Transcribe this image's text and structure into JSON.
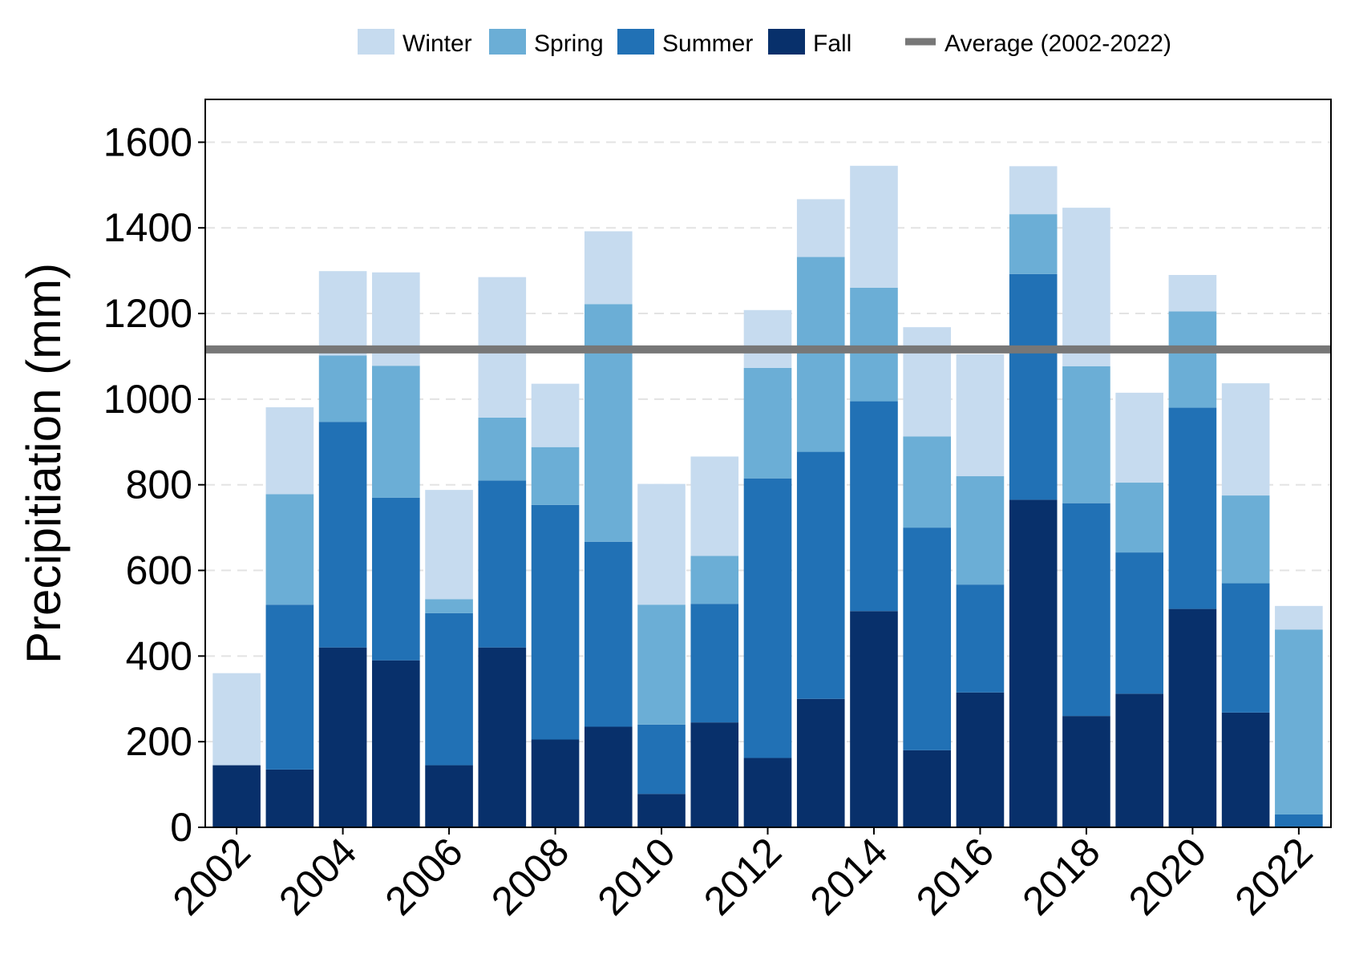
{
  "chart_data": {
    "type": "bar",
    "stacked": true,
    "title": "",
    "xlabel": "",
    "ylabel": "Precipitiation (mm)",
    "ylim": [
      0,
      1700
    ],
    "y_ticks": [
      0,
      200,
      400,
      600,
      800,
      1000,
      1200,
      1400,
      1600
    ],
    "x_tick_labels": [
      "2002",
      "2004",
      "2006",
      "2008",
      "2010",
      "2012",
      "2014",
      "2016",
      "2018",
      "2020",
      "2022"
    ],
    "x_tick_label_angle": -45,
    "grid": "horizontal dashed",
    "legend_position": "top",
    "categories": [
      "2002",
      "2003",
      "2004",
      "2005",
      "2006",
      "2007",
      "2008",
      "2009",
      "2010",
      "2011",
      "2012",
      "2013",
      "2014",
      "2015",
      "2016",
      "2017",
      "2018",
      "2019",
      "2020",
      "2021",
      "2022"
    ],
    "series": [
      {
        "name": "Fall",
        "color": "#08306b",
        "values": [
          145,
          135,
          420,
          390,
          145,
          420,
          205,
          235,
          78,
          245,
          162,
          300,
          505,
          180,
          315,
          765,
          260,
          312,
          510,
          268,
          0
        ]
      },
      {
        "name": "Summer",
        "color": "#2171b5",
        "values": [
          0,
          385,
          527,
          380,
          355,
          390,
          548,
          432,
          162,
          277,
          653,
          577,
          490,
          520,
          252,
          527,
          497,
          330,
          470,
          302,
          30
        ]
      },
      {
        "name": "Spring",
        "color": "#6baed6",
        "values": [
          0,
          258,
          155,
          308,
          33,
          147,
          135,
          555,
          280,
          112,
          258,
          455,
          265,
          213,
          253,
          140,
          320,
          163,
          225,
          205,
          432
        ]
      },
      {
        "name": "Winter",
        "color": "#c6dbef",
        "values": [
          215,
          203,
          197,
          218,
          255,
          328,
          148,
          170,
          282,
          232,
          135,
          135,
          285,
          255,
          285,
          112,
          370,
          210,
          85,
          262,
          55
        ]
      }
    ],
    "average_line": {
      "name": "Average (2002-2022)",
      "value": 1116,
      "color": "#777777"
    },
    "legend_order": [
      "Winter",
      "Spring",
      "Summer",
      "Fall",
      "Average (2002-2022)"
    ]
  }
}
